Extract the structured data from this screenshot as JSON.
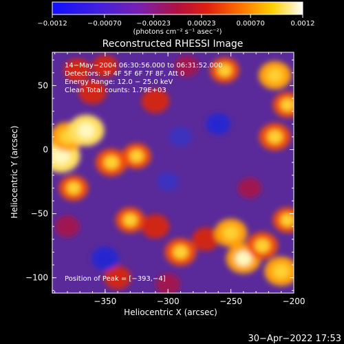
{
  "chart_data": {
    "type": "heatmap",
    "title": "Reconstructed RHESSI Image",
    "xlabel": "Heliocentric X (arcsec)",
    "ylabel": "Heliocentric Y (arcsec)",
    "xlim": [
      -392,
      -200
    ],
    "ylim": [
      -112,
      76
    ],
    "x_ticks": [
      -350,
      -300,
      -250,
      -200
    ],
    "x_tick_labels": [
      "−350",
      "−300",
      "−250",
      "−200"
    ],
    "y_ticks": [
      -100,
      -50,
      0,
      50
    ],
    "y_tick_labels": [
      "−100",
      "−50",
      "0",
      "50"
    ],
    "colorbar": {
      "range": [
        -0.0012,
        0.0012
      ],
      "ticks": [
        -0.0012,
        -0.0007,
        -0.00023,
        0.00023,
        0.0007,
        0.0012
      ],
      "tick_labels": [
        "−0.0012",
        "−0.00070",
        "−0.00023",
        "0.00023",
        "0.00070",
        "0.0012"
      ],
      "units_label": "(photons cm⁻² s⁻¹ asec⁻²)"
    },
    "annotations": [
      "14−May−2004 06:30:56.000 to 06:31:52.000",
      "Detectors: 3F 4F 5F 6F 7F 8F, Att 0",
      "Energy Range: 12.0 − 25.0 keV",
      "Clean     Total counts: 1.79E+03"
    ],
    "peak_label": "Position of Peak = [−393,−4]",
    "peak_position": [
      -393,
      -4
    ],
    "blobs": [
      {
        "x": -385,
        "y": -5,
        "v": 1.0
      },
      {
        "x": -380,
        "y": 10,
        "v": 0.8
      },
      {
        "x": -365,
        "y": 15,
        "v": 0.9
      },
      {
        "x": -345,
        "y": -10,
        "v": 0.7
      },
      {
        "x": -325,
        "y": -5,
        "v": 0.6
      },
      {
        "x": -375,
        "y": -30,
        "v": 0.6
      },
      {
        "x": -360,
        "y": 45,
        "v": 0.55
      },
      {
        "x": -372,
        "y": 62,
        "v": 0.5
      },
      {
        "x": -350,
        "y": 65,
        "v": 0.45
      },
      {
        "x": -310,
        "y": 38,
        "v": 0.55
      },
      {
        "x": -285,
        "y": 65,
        "v": 0.4
      },
      {
        "x": -255,
        "y": 62,
        "v": 0.6
      },
      {
        "x": -215,
        "y": 58,
        "v": 0.75
      },
      {
        "x": -205,
        "y": 35,
        "v": 0.6
      },
      {
        "x": -215,
        "y": 10,
        "v": 0.7
      },
      {
        "x": -330,
        "y": -55,
        "v": 0.6
      },
      {
        "x": -310,
        "y": -60,
        "v": 0.55
      },
      {
        "x": -290,
        "y": -80,
        "v": 0.7
      },
      {
        "x": -270,
        "y": -70,
        "v": 0.5
      },
      {
        "x": -250,
        "y": -65,
        "v": 0.75
      },
      {
        "x": -240,
        "y": -85,
        "v": 0.85
      },
      {
        "x": -225,
        "y": -75,
        "v": 0.7
      },
      {
        "x": -210,
        "y": -95,
        "v": 0.8
      },
      {
        "x": -205,
        "y": -55,
        "v": 0.6
      },
      {
        "x": -340,
        "y": -100,
        "v": 0.5
      },
      {
        "x": -300,
        "y": -105,
        "v": 0.4
      },
      {
        "x": -380,
        "y": -60,
        "v": 0.4
      },
      {
        "x": -235,
        "y": -30,
        "v": 0.35
      },
      {
        "x": -260,
        "y": 20,
        "v": -0.4
      },
      {
        "x": -290,
        "y": 10,
        "v": -0.3
      },
      {
        "x": -350,
        "y": -85,
        "v": -0.5
      },
      {
        "x": -300,
        "y": -25,
        "v": -0.25
      }
    ]
  },
  "footer": {
    "timestamp": "30−Apr−2022 17:53"
  }
}
